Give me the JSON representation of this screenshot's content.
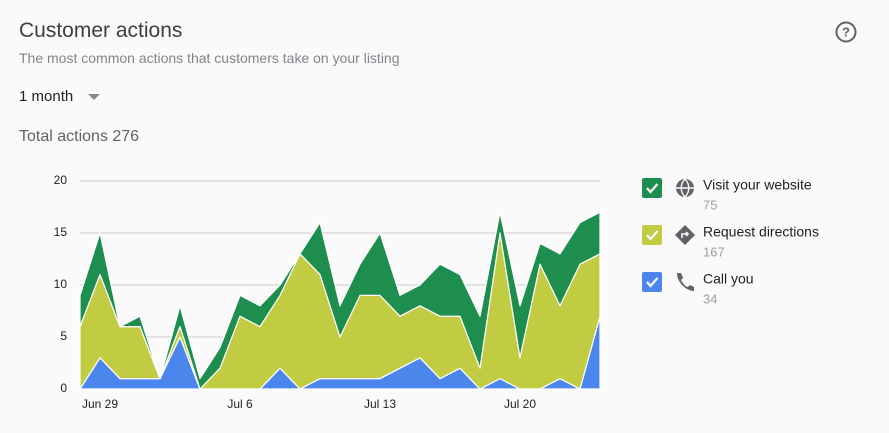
{
  "header": {
    "title": "Customer actions",
    "subtitle": "The most common actions that customers take on your listing",
    "period": "1 month",
    "total": "Total actions 276"
  },
  "chart_data": {
    "type": "stacked-area",
    "categories": [
      null,
      "Jun 29",
      null,
      null,
      null,
      null,
      null,
      null,
      "Jul 6",
      null,
      null,
      null,
      null,
      null,
      null,
      "Jul 13",
      null,
      null,
      null,
      null,
      null,
      null,
      "Jul 20",
      null,
      null,
      null,
      null
    ],
    "ylim": [
      0,
      20
    ],
    "yticks": [
      0,
      5,
      10,
      15,
      20
    ],
    "grid": true,
    "series": [
      {
        "name": "Visit your website",
        "total": 75,
        "color": "#1e8e4e",
        "values": [
          3,
          4,
          0,
          1,
          0,
          2,
          1,
          2,
          2,
          2,
          1,
          0,
          5,
          3,
          3,
          6,
          2,
          2,
          5,
          4,
          5,
          2,
          5,
          2,
          5,
          4,
          4
        ]
      },
      {
        "name": "Request directions",
        "total": 167,
        "color": "#c2cc43",
        "values": [
          6,
          8,
          5,
          5,
          0,
          1,
          0,
          2,
          7,
          6,
          7,
          13,
          10,
          4,
          8,
          8,
          5,
          5,
          6,
          5,
          2,
          14,
          3,
          12,
          7,
          12,
          6
        ]
      },
      {
        "name": "Call you",
        "total": 34,
        "color": "#4a86ec",
        "values": [
          0,
          3,
          1,
          1,
          1,
          5,
          0,
          0,
          0,
          0,
          2,
          0,
          1,
          1,
          1,
          1,
          2,
          3,
          1,
          2,
          0,
          1,
          0,
          0,
          1,
          0,
          7
        ]
      }
    ]
  }
}
